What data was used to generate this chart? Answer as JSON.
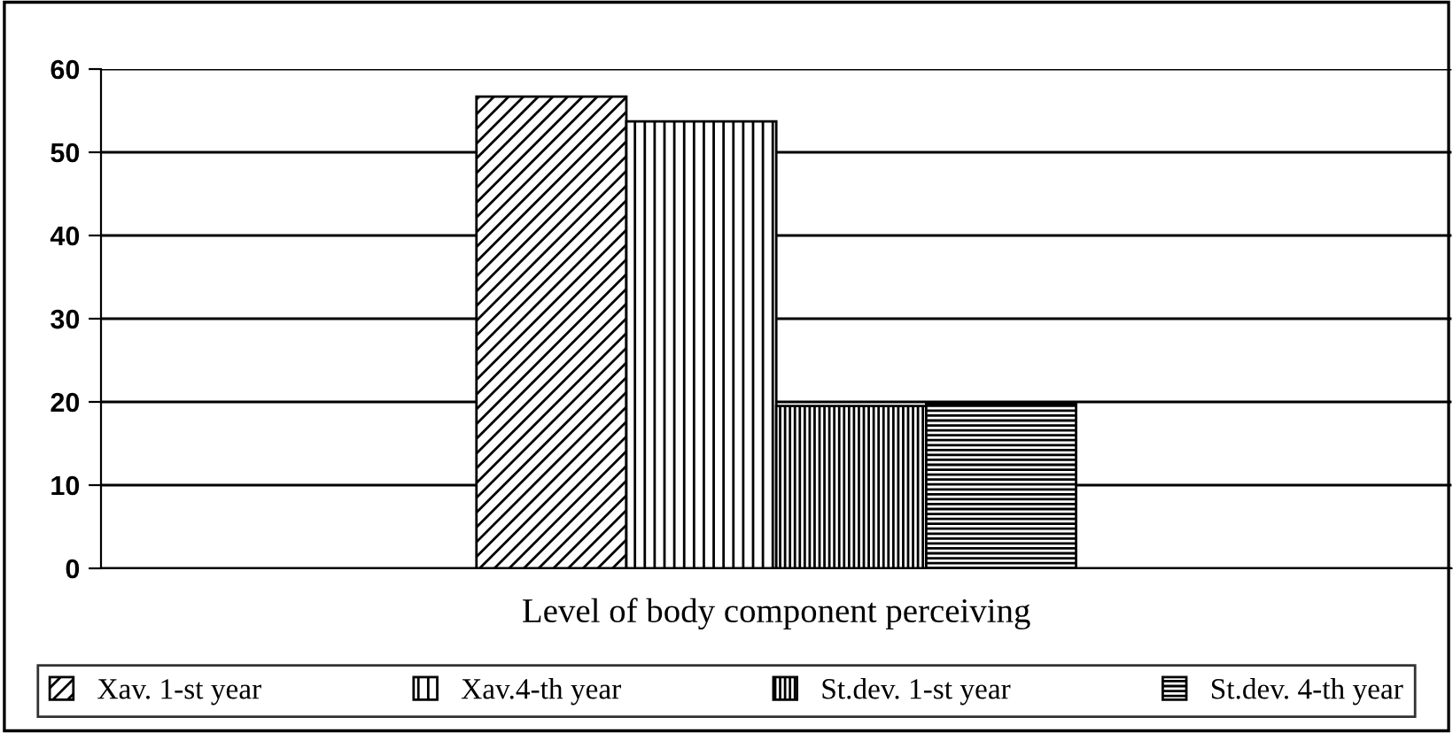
{
  "chart_data": {
    "type": "bar",
    "categories": [
      "Level of body component perceiving"
    ],
    "series": [
      {
        "name": "Xav. 1-st year",
        "color": "#000000",
        "values": [
          56.7
        ]
      },
      {
        "name": "Xav.4-th year",
        "color": "#000000",
        "values": [
          53.7
        ]
      },
      {
        "name": "St.dev. 1-st year",
        "color": "#000000",
        "values": [
          19.5
        ]
      },
      {
        "name": "St.dev. 4-th year",
        "color": "#000000",
        "values": [
          19.8
        ]
      }
    ],
    "ylim": [
      0,
      60
    ],
    "yticks": [
      0,
      10,
      20,
      30,
      40,
      50,
      60
    ],
    "grid": "y",
    "legend": "bottom"
  }
}
